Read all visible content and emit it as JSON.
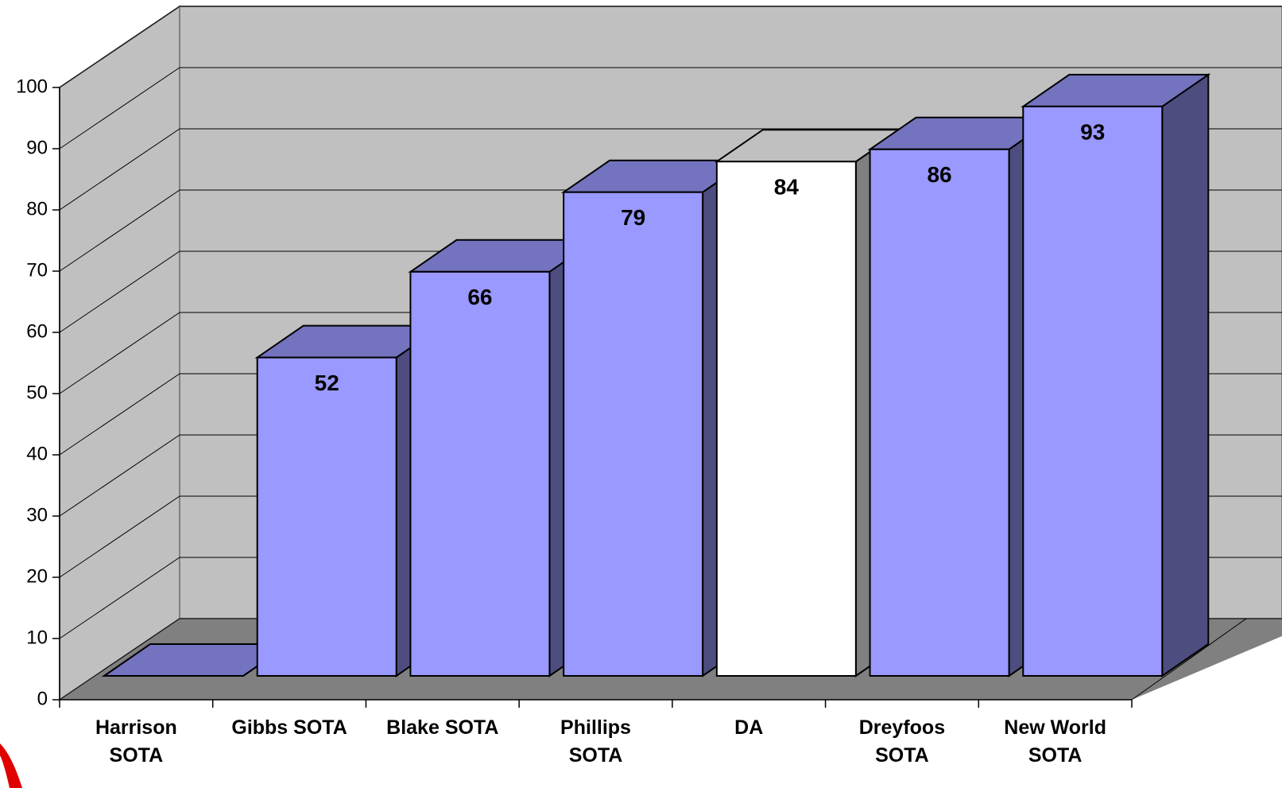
{
  "chart_data": {
    "type": "bar3d",
    "categories": [
      "Harrison SOTA",
      "Gibbs SOTA",
      "Blake SOTA",
      "Phillips SOTA",
      "DA",
      "Dreyfoos SOTA",
      "New World SOTA"
    ],
    "values": [
      0,
      52,
      66,
      79,
      84,
      86,
      93
    ],
    "colors": [
      "#9999ff",
      "#9999ff",
      "#9999ff",
      "#9999ff",
      "#ffffff",
      "#9999ff",
      "#9999ff"
    ],
    "ylim": [
      0,
      100
    ],
    "yticks": [
      0,
      10,
      20,
      30,
      40,
      50,
      60,
      70,
      80,
      90,
      100
    ],
    "grid": true
  }
}
